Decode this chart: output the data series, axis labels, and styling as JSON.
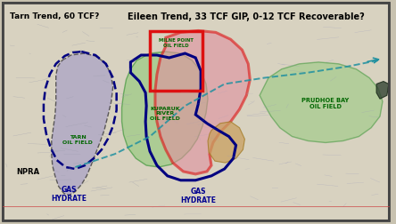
{
  "title_eileen": "Eileen Trend, 33 TCF GIP, 0-12 TCF Recoverable?",
  "title_tarn": "Tarn Trend, 60 TCF?",
  "fig_width": 4.44,
  "fig_height": 2.53,
  "labels": {
    "milne_point": "MILNE POINT\nOIL FIELD",
    "kuparuk": "KUPARUK\nRIVER\nOIL FIELD",
    "tarn_oil": "TARN\nOIL FIELD",
    "gas_hydrate_left": "GAS\nHYDRATE",
    "gas_hydrate_right": "GAS\nHYDRATE",
    "prudhoe": "PRUDHOE BAY\nOIL FIELD",
    "npra": "NPRA"
  },
  "colors": {
    "tarn_fill": "#a098c8",
    "tarn_alpha": 0.6,
    "kuparuk_fill": "#88c870",
    "kuparuk_alpha": 0.55,
    "eileen_fill": "#e090a0",
    "eileen_alpha": 0.6,
    "prudhoe_fill": "#88c870",
    "prudhoe_alpha": 0.45,
    "gas_hydrate_outline": "#000080",
    "eileen_outline": "#dd1111",
    "tarn_outline": "#111111",
    "milne_box": "#dd1111",
    "brown_blob": "#c8a060",
    "brown_alpha": 0.75,
    "teal_line": "#2090a0",
    "label_green": "#006600",
    "label_blue": "#000090",
    "map_line": "#8898b8"
  }
}
